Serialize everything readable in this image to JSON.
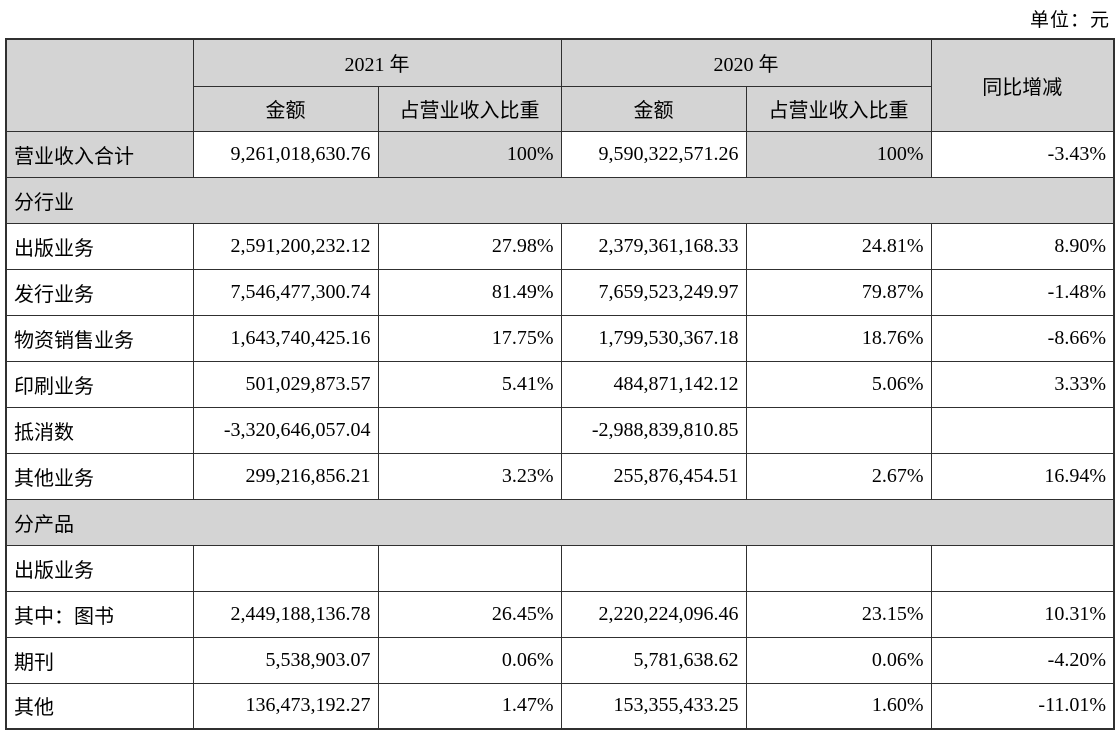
{
  "meta": {
    "unit_label": "单位：元"
  },
  "colors": {
    "shade": "#d4d4d4",
    "border": "#303030",
    "text": "#000000"
  },
  "table": {
    "header": {
      "year_2021": "2021 年",
      "year_2020": "2020 年",
      "amount": "金额",
      "share": "占营业收入比重",
      "yoy": "同比增减"
    },
    "rows": [
      {
        "type": "total",
        "label": "营业收入合计",
        "a2021": "9,261,018,630.76",
        "s2021": "100%",
        "a2020": "9,590,322,571.26",
        "s2020": "100%",
        "yoy": "-3.43%"
      },
      {
        "type": "section",
        "label": "分行业"
      },
      {
        "type": "data",
        "label": "出版业务",
        "a2021": "2,591,200,232.12",
        "s2021": "27.98%",
        "a2020": "2,379,361,168.33",
        "s2020": "24.81%",
        "yoy": "8.90%"
      },
      {
        "type": "data",
        "label": "发行业务",
        "a2021": "7,546,477,300.74",
        "s2021": "81.49%",
        "a2020": "7,659,523,249.97",
        "s2020": "79.87%",
        "yoy": "-1.48%"
      },
      {
        "type": "data",
        "label": "物资销售业务",
        "a2021": "1,643,740,425.16",
        "s2021": "17.75%",
        "a2020": "1,799,530,367.18",
        "s2020": "18.76%",
        "yoy": "-8.66%"
      },
      {
        "type": "data",
        "label": "印刷业务",
        "a2021": "501,029,873.57",
        "s2021": "5.41%",
        "a2020": "484,871,142.12",
        "s2020": "5.06%",
        "yoy": "3.33%"
      },
      {
        "type": "data",
        "label": "抵消数",
        "a2021": "-3,320,646,057.04",
        "s2021": "",
        "a2020": "-2,988,839,810.85",
        "s2020": "",
        "yoy": ""
      },
      {
        "type": "data",
        "label": "其他业务",
        "a2021": "299,216,856.21",
        "s2021": "3.23%",
        "a2020": "255,876,454.51",
        "s2020": "2.67%",
        "yoy": "16.94%"
      },
      {
        "type": "section",
        "label": "分产品"
      },
      {
        "type": "data",
        "label": "出版业务",
        "a2021": "",
        "s2021": "",
        "a2020": "",
        "s2020": "",
        "yoy": ""
      },
      {
        "type": "data",
        "label": "其中：图书",
        "a2021": "2,449,188,136.78",
        "s2021": "26.45%",
        "a2020": "2,220,224,096.46",
        "s2020": "23.15%",
        "yoy": "10.31%"
      },
      {
        "type": "data",
        "label": "期刊",
        "a2021": "5,538,903.07",
        "s2021": "0.06%",
        "a2020": "5,781,638.62",
        "s2020": "0.06%",
        "yoy": "-4.20%"
      },
      {
        "type": "data",
        "label": "其他",
        "a2021": "136,473,192.27",
        "s2021": "1.47%",
        "a2020": "153,355,433.25",
        "s2020": "1.60%",
        "yoy": "-11.01%"
      }
    ]
  }
}
